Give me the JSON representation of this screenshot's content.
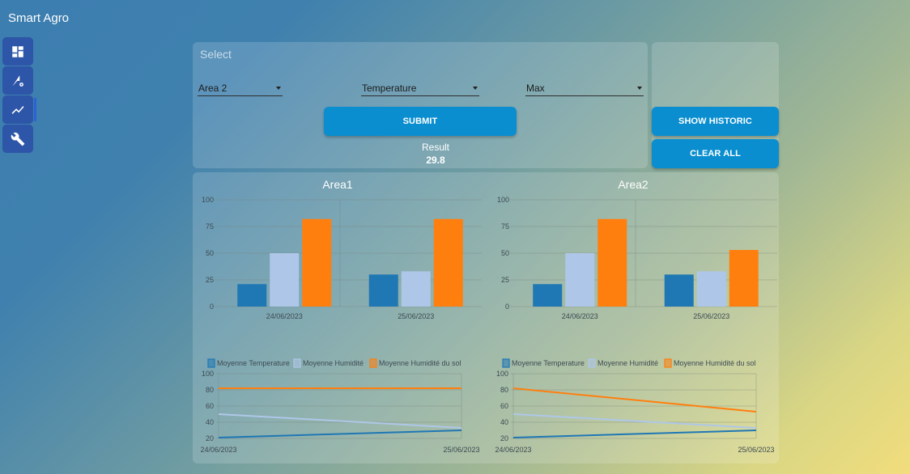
{
  "app": {
    "title": "Smart Agro"
  },
  "sidebar": {
    "items": [
      {
        "icon": "dashboard-icon"
      },
      {
        "icon": "settings-sensor-icon"
      },
      {
        "icon": "trend-chart-icon",
        "active": true
      },
      {
        "icon": "wrench-icon"
      }
    ]
  },
  "select_panel": {
    "title": "Select",
    "area": "Area 2",
    "metric": "Temperature",
    "aggregate": "Max",
    "submit_label": "SUBMIT",
    "result_label": "Result",
    "result_value": "29.8"
  },
  "actions": {
    "show_historic": "SHOW HISTORIC",
    "clear_all": "CLEAR ALL"
  },
  "colors": {
    "temperature": "#1f77b4",
    "humidite": "#aec7e8",
    "humidite_sol": "#ff7f0e",
    "button": "#0a8ecf",
    "nav": "#2d55a8"
  },
  "chart_data": [
    {
      "type": "bar",
      "title": "Area1",
      "categories": [
        "24/06/2023",
        "25/06/2023"
      ],
      "series": [
        {
          "name": "Moyenne Temperature",
          "values": [
            21,
            30
          ]
        },
        {
          "name": "Moyenne Humidité",
          "values": [
            50,
            33
          ]
        },
        {
          "name": "Moyenne Humidité du sol",
          "values": [
            82,
            82
          ]
        }
      ],
      "ylim": [
        0,
        100
      ],
      "yticks": [
        "0",
        "25",
        "50",
        "75",
        "100"
      ]
    },
    {
      "type": "bar",
      "title": "Area2",
      "categories": [
        "24/06/2023",
        "25/06/2023"
      ],
      "series": [
        {
          "name": "Moyenne Temperature",
          "values": [
            21,
            30
          ]
        },
        {
          "name": "Moyenne Humidité",
          "values": [
            50,
            33
          ]
        },
        {
          "name": "Moyenne Humidité du sol",
          "values": [
            82,
            53
          ]
        }
      ],
      "ylim": [
        0,
        100
      ],
      "yticks": [
        "0",
        "25",
        "50",
        "75",
        "100"
      ]
    },
    {
      "type": "line",
      "x": [
        "24/06/2023",
        "25/06/2023"
      ],
      "series": [
        {
          "name": "Moyenne Temperature",
          "values": [
            21,
            30
          ]
        },
        {
          "name": "Moyenne Humidité",
          "values": [
            50,
            33
          ]
        },
        {
          "name": "Moyenne Humidité du sol",
          "values": [
            82,
            82
          ]
        }
      ],
      "ylim": [
        20,
        100
      ],
      "yticks": [
        "20",
        "40",
        "60",
        "80",
        "100"
      ],
      "legend": "top"
    },
    {
      "type": "line",
      "x": [
        "24/06/2023",
        "25/06/2023"
      ],
      "series": [
        {
          "name": "Moyenne Temperature",
          "values": [
            21,
            30
          ]
        },
        {
          "name": "Moyenne Humidité",
          "values": [
            50,
            33
          ]
        },
        {
          "name": "Moyenne Humidité du sol",
          "values": [
            82,
            53
          ]
        }
      ],
      "ylim": [
        20,
        100
      ],
      "yticks": [
        "20",
        "40",
        "60",
        "80",
        "100"
      ],
      "legend": "top"
    }
  ]
}
